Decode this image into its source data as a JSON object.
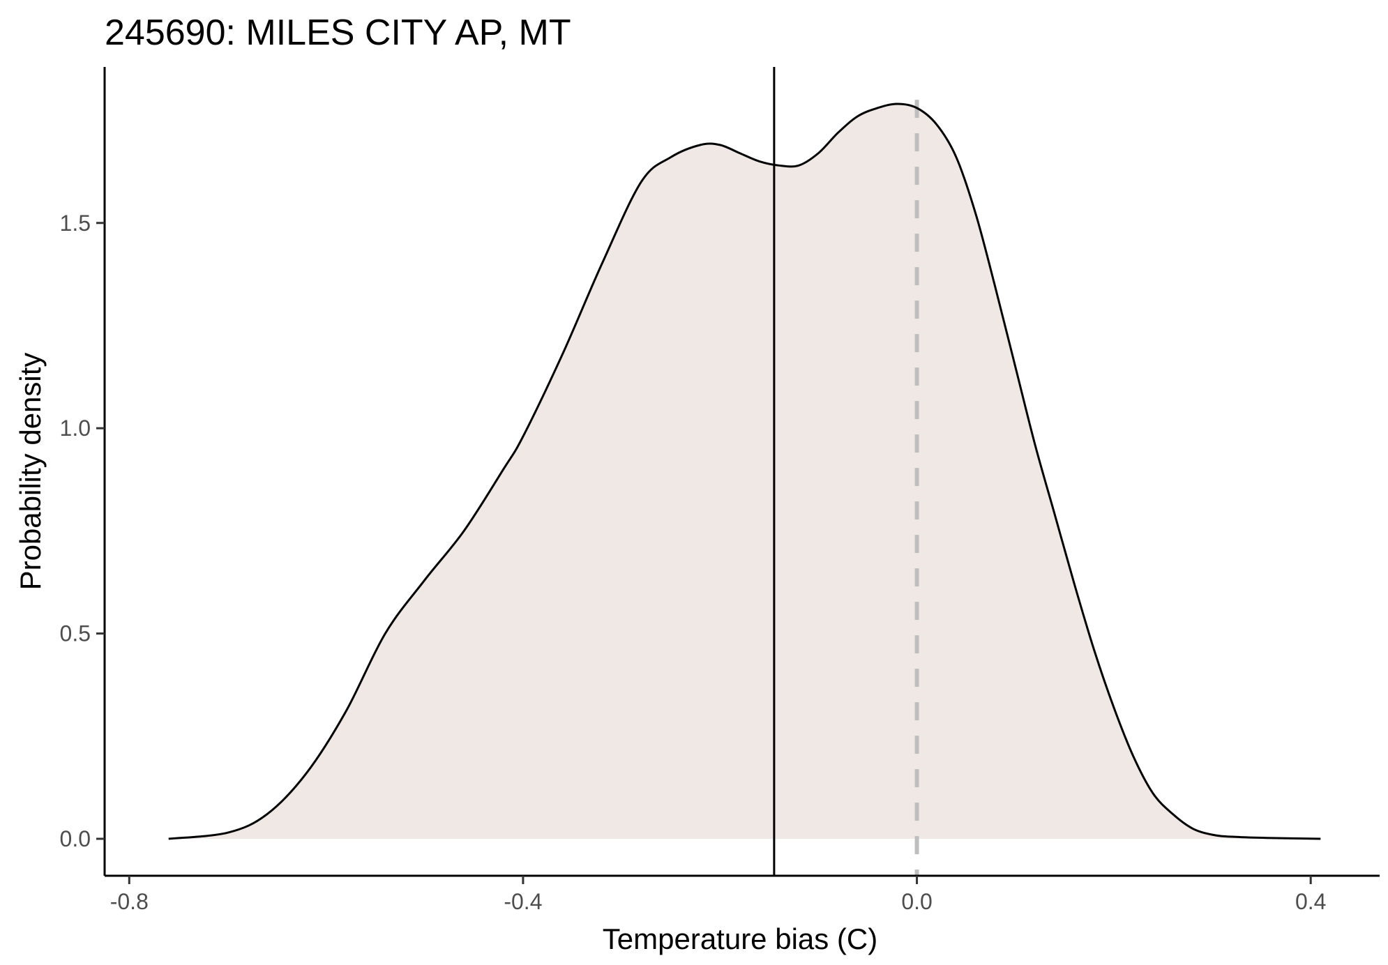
{
  "chart_data": {
    "type": "area",
    "title": "245690: MILES CITY AP, MT",
    "xlabel": "Temperature bias (C)",
    "ylabel": "Probability density",
    "xlim": [
      -0.825,
      0.47
    ],
    "ylim": [
      -0.09,
      1.88
    ],
    "x_ticks": [
      -0.8,
      -0.4,
      0.0,
      0.4
    ],
    "x_tick_labels": [
      "-0.8",
      "-0.4",
      "0.0",
      "0.4"
    ],
    "y_ticks": [
      0.0,
      0.5,
      1.0,
      1.5
    ],
    "y_tick_labels": [
      "0.0",
      "0.5",
      "1.0",
      "1.5"
    ],
    "grid": false,
    "fill_color": "#efe8e4",
    "line_color": "#000000",
    "mean_line": {
      "x": -0.145,
      "color": "#000000",
      "style": "solid"
    },
    "reference_line": {
      "x": 0.0,
      "color": "#bebebe",
      "style": "dashed"
    },
    "series": [
      {
        "x": [
          -0.76,
          -0.7,
          -0.66,
          -0.62,
          -0.58,
          -0.54,
          -0.5,
          -0.46,
          -0.42,
          -0.4,
          -0.36,
          -0.32,
          -0.28,
          -0.25,
          -0.22,
          -0.2,
          -0.18,
          -0.16,
          -0.14,
          -0.12,
          -0.1,
          -0.08,
          -0.06,
          -0.04,
          -0.02,
          0.0,
          0.02,
          0.04,
          0.06,
          0.08,
          0.1,
          0.12,
          0.14,
          0.16,
          0.18,
          0.2,
          0.22,
          0.24,
          0.26,
          0.28,
          0.3,
          0.32,
          0.36,
          0.41
        ],
        "values": [
          0.0,
          0.015,
          0.06,
          0.16,
          0.31,
          0.5,
          0.63,
          0.75,
          0.9,
          0.98,
          1.18,
          1.4,
          1.6,
          1.66,
          1.69,
          1.69,
          1.67,
          1.65,
          1.64,
          1.64,
          1.67,
          1.72,
          1.76,
          1.78,
          1.79,
          1.78,
          1.74,
          1.66,
          1.52,
          1.34,
          1.15,
          0.96,
          0.79,
          0.62,
          0.46,
          0.32,
          0.2,
          0.11,
          0.06,
          0.025,
          0.01,
          0.005,
          0.002,
          0.0
        ]
      }
    ]
  }
}
